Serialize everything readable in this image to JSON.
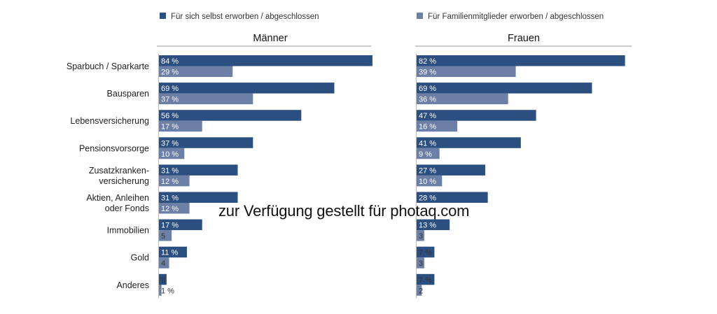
{
  "chart_data": {
    "type": "bar",
    "orientation": "horizontal",
    "legend": {
      "placement": "top",
      "entries": [
        {
          "label": "Für sich selbst erworben / abgeschlossen",
          "color": "#2b4f80"
        },
        {
          "label": "Für Familienmitglieder erworben / abgeschlossen",
          "color": "#6b7fa7"
        }
      ]
    },
    "categories": [
      "Sparbuch / Sparkarte",
      "Bausparen",
      "Lebensversicherung",
      "Pensionsvorsorge",
      "Zusatzkranken-\nversicherung",
      "Aktien, Anleihen\noder Fonds",
      "Immobilien",
      "Gold",
      "Anderes"
    ],
    "panels": [
      {
        "title": "Männer",
        "series": [
          {
            "values": [
              84,
              69,
              56,
              37,
              31,
              31,
              17,
              11,
              3
            ],
            "labels": [
              "84 %",
              "69 %",
              "56 %",
              "37 %",
              "31 %",
              "31 %",
              "17 %",
              "11 %",
              "3"
            ]
          },
          {
            "values": [
              29,
              37,
              17,
              10,
              12,
              12,
              5,
              4,
              1
            ],
            "labels": [
              "29 %",
              "37 %",
              "17 %",
              "10 %",
              "12 %",
              "12 %",
              "5",
              "4",
              "1 %"
            ]
          }
        ]
      },
      {
        "title": "Frauen",
        "series": [
          {
            "values": [
              82,
              69,
              47,
              41,
              27,
              28,
              13,
              7,
              7
            ],
            "labels": [
              "82 %",
              "69 %",
              "47 %",
              "41 %",
              "27 %",
              "28 %",
              "13 %",
              "7 %",
              "7 %"
            ]
          },
          {
            "values": [
              39,
              36,
              16,
              9,
              10,
              0,
              3,
              3,
              2
            ],
            "labels": [
              "39 %",
              "36 %",
              "16 %",
              "9 %",
              "10 %",
              "",
              "3",
              "3",
              "2"
            ]
          }
        ]
      }
    ],
    "xlim": [
      0,
      100
    ],
    "grid": false
  },
  "watermark": "zur Verfügung gestellt für photaq.com"
}
